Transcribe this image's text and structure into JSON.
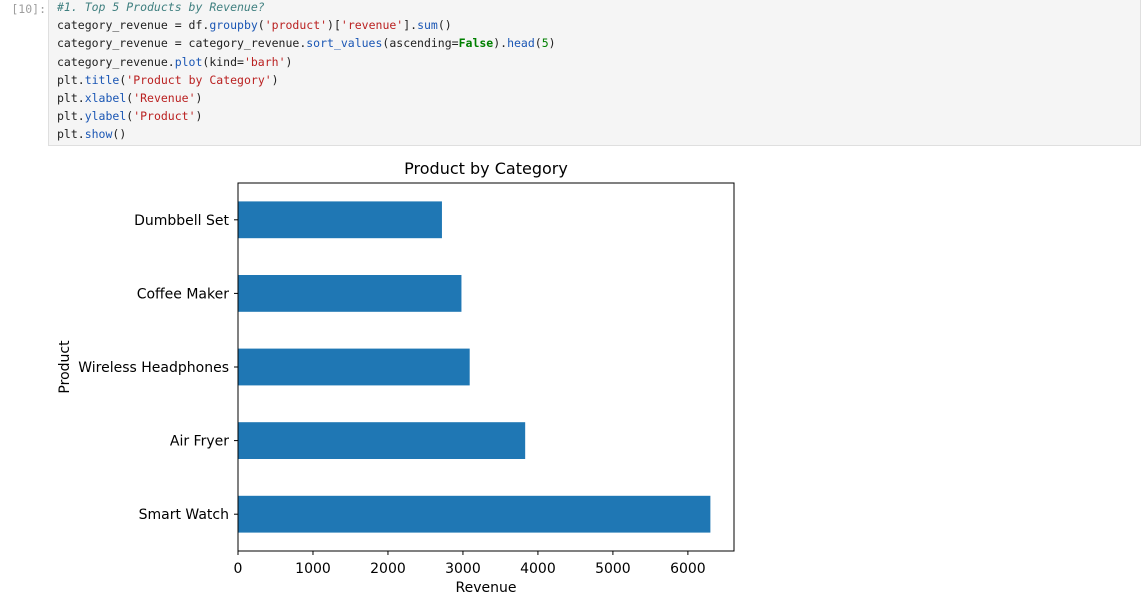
{
  "cell": {
    "prompt": "[10]:",
    "code_lines": [
      [
        {
          "t": "#1. Top 5 Products by Revenue?",
          "c": "comment"
        }
      ],
      [
        {
          "t": "category_revenue = df."
        },
        {
          "t": "groupby",
          "c": "attr"
        },
        {
          "t": "("
        },
        {
          "t": "'product'",
          "c": "str"
        },
        {
          "t": ")["
        },
        {
          "t": "'revenue'",
          "c": "str"
        },
        {
          "t": "]."
        },
        {
          "t": "sum",
          "c": "attr"
        },
        {
          "t": "()"
        }
      ],
      [
        {
          "t": "category_revenue = category_revenue."
        },
        {
          "t": "sort_values",
          "c": "attr"
        },
        {
          "t": "(ascending="
        },
        {
          "t": "False",
          "c": "kw"
        },
        {
          "t": ")."
        },
        {
          "t": "head",
          "c": "attr"
        },
        {
          "t": "("
        },
        {
          "t": "5",
          "c": "num"
        },
        {
          "t": ")"
        }
      ],
      [
        {
          "t": "category_revenue."
        },
        {
          "t": "plot",
          "c": "attr"
        },
        {
          "t": "(kind="
        },
        {
          "t": "'barh'",
          "c": "str"
        },
        {
          "t": ")"
        }
      ],
      [
        {
          "t": "plt."
        },
        {
          "t": "title",
          "c": "attr"
        },
        {
          "t": "("
        },
        {
          "t": "'Product by Category'",
          "c": "str"
        },
        {
          "t": ")"
        }
      ],
      [
        {
          "t": "plt."
        },
        {
          "t": "xlabel",
          "c": "attr"
        },
        {
          "t": "("
        },
        {
          "t": "'Revenue'",
          "c": "str"
        },
        {
          "t": ")"
        }
      ],
      [
        {
          "t": "plt."
        },
        {
          "t": "ylabel",
          "c": "attr"
        },
        {
          "t": "("
        },
        {
          "t": "'Product'",
          "c": "str"
        },
        {
          "t": ")"
        }
      ],
      [
        {
          "t": "plt."
        },
        {
          "t": "show",
          "c": "attr"
        },
        {
          "t": "()"
        }
      ]
    ]
  },
  "colors": {
    "bar": "#1f77b4"
  },
  "chart_data": {
    "type": "bar",
    "orientation": "horizontal",
    "title": "Product by Category",
    "xlabel": "Revenue",
    "ylabel": "Product",
    "categories": [
      "Smart Watch",
      "Air Fryer",
      "Wireless Headphones",
      "Coffee Maker",
      "Dumbbell Set"
    ],
    "values": [
      6300,
      3830,
      3090,
      2980,
      2720
    ],
    "xlim": [
      0,
      6615
    ],
    "xticks": [
      0,
      1000,
      2000,
      3000,
      4000,
      5000,
      6000
    ],
    "grid": false,
    "legend": "none"
  }
}
